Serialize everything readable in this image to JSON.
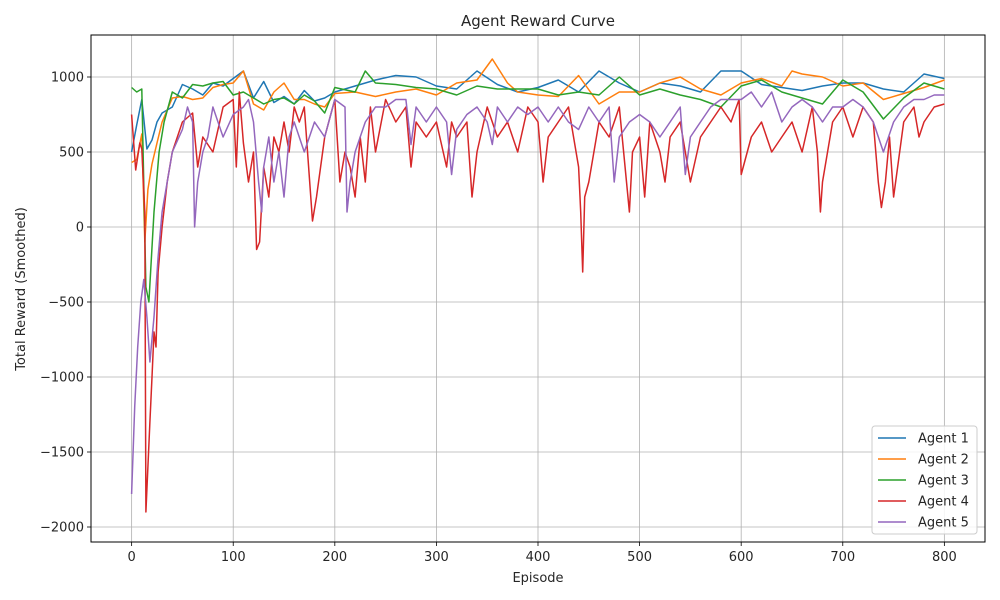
{
  "chart_data": {
    "type": "line",
    "title": "Agent Reward Curve",
    "xlabel": "Episode",
    "ylabel": "Total Reward (Smoothed)",
    "xlim": [
      -40,
      840
    ],
    "ylim": [
      -2100,
      1280
    ],
    "xticks": [
      0,
      100,
      200,
      300,
      400,
      500,
      600,
      700,
      800
    ],
    "yticks": [
      -2000,
      -1500,
      -1000,
      -500,
      0,
      500,
      1000
    ],
    "ytick_labels": [
      "−2000",
      "−1500",
      "−1000",
      "−500",
      "0",
      "500",
      "1000"
    ],
    "grid": true,
    "legend_position": "lower-right",
    "series": [
      {
        "name": "Agent 1",
        "color": "#1f77b4",
        "x": [
          0,
          5,
          10,
          15,
          20,
          25,
          30,
          40,
          50,
          60,
          70,
          80,
          90,
          100,
          110,
          120,
          130,
          140,
          150,
          160,
          170,
          180,
          190,
          200,
          220,
          240,
          260,
          280,
          300,
          320,
          340,
          360,
          380,
          400,
          420,
          440,
          460,
          480,
          500,
          520,
          540,
          560,
          580,
          600,
          620,
          640,
          660,
          680,
          700,
          720,
          740,
          760,
          780,
          800
        ],
        "y": [
          500,
          680,
          850,
          520,
          580,
          700,
          760,
          800,
          950,
          920,
          880,
          960,
          940,
          990,
          1040,
          860,
          970,
          830,
          870,
          820,
          910,
          840,
          860,
          900,
          940,
          980,
          1010,
          1000,
          940,
          920,
          1040,
          950,
          900,
          930,
          980,
          900,
          1040,
          960,
          900,
          960,
          940,
          900,
          1040,
          1040,
          950,
          930,
          910,
          940,
          960,
          960,
          920,
          900,
          1020,
          990
        ]
      },
      {
        "name": "Agent 2",
        "color": "#ff7f0e",
        "x": [
          0,
          5,
          10,
          13,
          16,
          20,
          25,
          30,
          40,
          50,
          60,
          70,
          80,
          90,
          100,
          110,
          120,
          130,
          140,
          150,
          160,
          170,
          180,
          190,
          200,
          220,
          240,
          260,
          280,
          300,
          320,
          340,
          355,
          370,
          380,
          400,
          420,
          440,
          460,
          480,
          500,
          520,
          540,
          560,
          580,
          600,
          620,
          640,
          650,
          660,
          680,
          700,
          720,
          740,
          760,
          780,
          800
        ],
        "y": [
          430,
          450,
          620,
          -100,
          250,
          420,
          560,
          700,
          860,
          870,
          850,
          860,
          930,
          950,
          960,
          1040,
          820,
          780,
          900,
          960,
          850,
          850,
          820,
          800,
          890,
          900,
          870,
          900,
          920,
          880,
          960,
          980,
          1120,
          960,
          900,
          880,
          870,
          1010,
          820,
          900,
          900,
          960,
          1000,
          920,
          880,
          960,
          990,
          940,
          1040,
          1020,
          1000,
          940,
          960,
          850,
          890,
          930,
          980
        ]
      },
      {
        "name": "Agent 3",
        "color": "#2ca02c",
        "x": [
          0,
          5,
          10,
          14,
          17,
          22,
          27,
          32,
          40,
          50,
          60,
          70,
          80,
          90,
          100,
          110,
          120,
          130,
          140,
          150,
          160,
          170,
          180,
          190,
          200,
          220,
          230,
          240,
          260,
          280,
          300,
          320,
          340,
          360,
          380,
          400,
          420,
          440,
          460,
          480,
          500,
          520,
          540,
          560,
          580,
          600,
          620,
          640,
          660,
          680,
          700,
          720,
          740,
          760,
          780,
          800
        ],
        "y": [
          930,
          900,
          920,
          -400,
          -500,
          100,
          500,
          700,
          900,
          860,
          950,
          940,
          960,
          970,
          880,
          900,
          860,
          820,
          850,
          860,
          820,
          880,
          840,
          760,
          930,
          900,
          1040,
          960,
          950,
          930,
          920,
          880,
          940,
          920,
          920,
          920,
          880,
          900,
          880,
          1000,
          880,
          920,
          880,
          850,
          800,
          940,
          980,
          900,
          860,
          820,
          980,
          900,
          720,
          860,
          960,
          920
        ]
      },
      {
        "name": "Agent 4",
        "color": "#d62728",
        "x": [
          0,
          4,
          8,
          10,
          13,
          14,
          16,
          18,
          20,
          22,
          24,
          26,
          30,
          35,
          40,
          50,
          60,
          65,
          70,
          80,
          90,
          100,
          103,
          106,
          110,
          115,
          120,
          123,
          126,
          130,
          135,
          140,
          145,
          150,
          155,
          160,
          165,
          170,
          178,
          182,
          190,
          200,
          205,
          210,
          215,
          220,
          225,
          230,
          235,
          240,
          250,
          260,
          270,
          275,
          280,
          290,
          300,
          310,
          315,
          320,
          330,
          335,
          340,
          350,
          360,
          370,
          380,
          390,
          400,
          405,
          410,
          420,
          430,
          440,
          442,
          444,
          446,
          450,
          460,
          470,
          480,
          490,
          493,
          500,
          505,
          510,
          520,
          525,
          530,
          540,
          550,
          560,
          570,
          580,
          590,
          598,
          600,
          610,
          620,
          630,
          640,
          650,
          660,
          670,
          675,
          678,
          680,
          690,
          700,
          710,
          720,
          730,
          735,
          738,
          742,
          746,
          750,
          760,
          770,
          775,
          780,
          790,
          800
        ],
        "y": [
          750,
          380,
          560,
          520,
          100,
          -1900,
          -1600,
          -1300,
          -1000,
          -700,
          -800,
          -300,
          0,
          300,
          500,
          700,
          760,
          400,
          600,
          500,
          800,
          850,
          400,
          900,
          560,
          300,
          500,
          -150,
          -100,
          400,
          200,
          600,
          500,
          700,
          500,
          800,
          700,
          800,
          40,
          200,
          600,
          850,
          300,
          500,
          400,
          200,
          600,
          300,
          800,
          500,
          850,
          700,
          800,
          400,
          700,
          600,
          700,
          400,
          700,
          600,
          700,
          200,
          500,
          800,
          600,
          700,
          500,
          800,
          700,
          300,
          600,
          700,
          800,
          400,
          100,
          -300,
          200,
          300,
          700,
          600,
          800,
          100,
          500,
          600,
          200,
          700,
          500,
          300,
          600,
          700,
          300,
          600,
          700,
          800,
          700,
          850,
          350,
          600,
          700,
          500,
          600,
          700,
          500,
          800,
          500,
          100,
          300,
          700,
          800,
          600,
          800,
          700,
          300,
          130,
          300,
          600,
          200,
          700,
          800,
          600,
          700,
          800,
          820
        ]
      },
      {
        "name": "Agent 5",
        "color": "#9467bd",
        "x": [
          0,
          3,
          6,
          9,
          12,
          15,
          18,
          22,
          26,
          30,
          35,
          40,
          50,
          55,
          60,
          62,
          65,
          70,
          75,
          80,
          90,
          100,
          110,
          115,
          120,
          125,
          128,
          130,
          135,
          140,
          145,
          150,
          155,
          160,
          170,
          180,
          190,
          200,
          210,
          212,
          215,
          220,
          230,
          240,
          250,
          260,
          270,
          275,
          280,
          290,
          300,
          310,
          315,
          320,
          330,
          340,
          350,
          355,
          360,
          370,
          380,
          390,
          400,
          410,
          420,
          430,
          440,
          450,
          460,
          470,
          475,
          480,
          490,
          500,
          510,
          520,
          530,
          540,
          545,
          550,
          560,
          570,
          580,
          590,
          600,
          610,
          620,
          630,
          640,
          650,
          660,
          670,
          680,
          690,
          700,
          710,
          720,
          730,
          740,
          750,
          760,
          770,
          780,
          790,
          800
        ],
        "y": [
          -1780,
          -1200,
          -800,
          -500,
          -350,
          -600,
          -900,
          -600,
          -200,
          100,
          300,
          500,
          650,
          800,
          700,
          0,
          300,
          500,
          600,
          800,
          600,
          750,
          800,
          850,
          700,
          300,
          100,
          400,
          600,
          300,
          500,
          200,
          600,
          700,
          500,
          700,
          600,
          850,
          800,
          100,
          300,
          500,
          700,
          800,
          800,
          850,
          850,
          550,
          800,
          700,
          800,
          700,
          350,
          650,
          750,
          800,
          700,
          550,
          800,
          700,
          800,
          750,
          800,
          700,
          800,
          700,
          650,
          800,
          700,
          800,
          300,
          600,
          700,
          750,
          700,
          600,
          700,
          800,
          350,
          600,
          700,
          800,
          850,
          850,
          850,
          900,
          800,
          900,
          700,
          800,
          850,
          800,
          700,
          800,
          800,
          850,
          800,
          700,
          500,
          700,
          800,
          850,
          850,
          880,
          880
        ]
      }
    ]
  }
}
